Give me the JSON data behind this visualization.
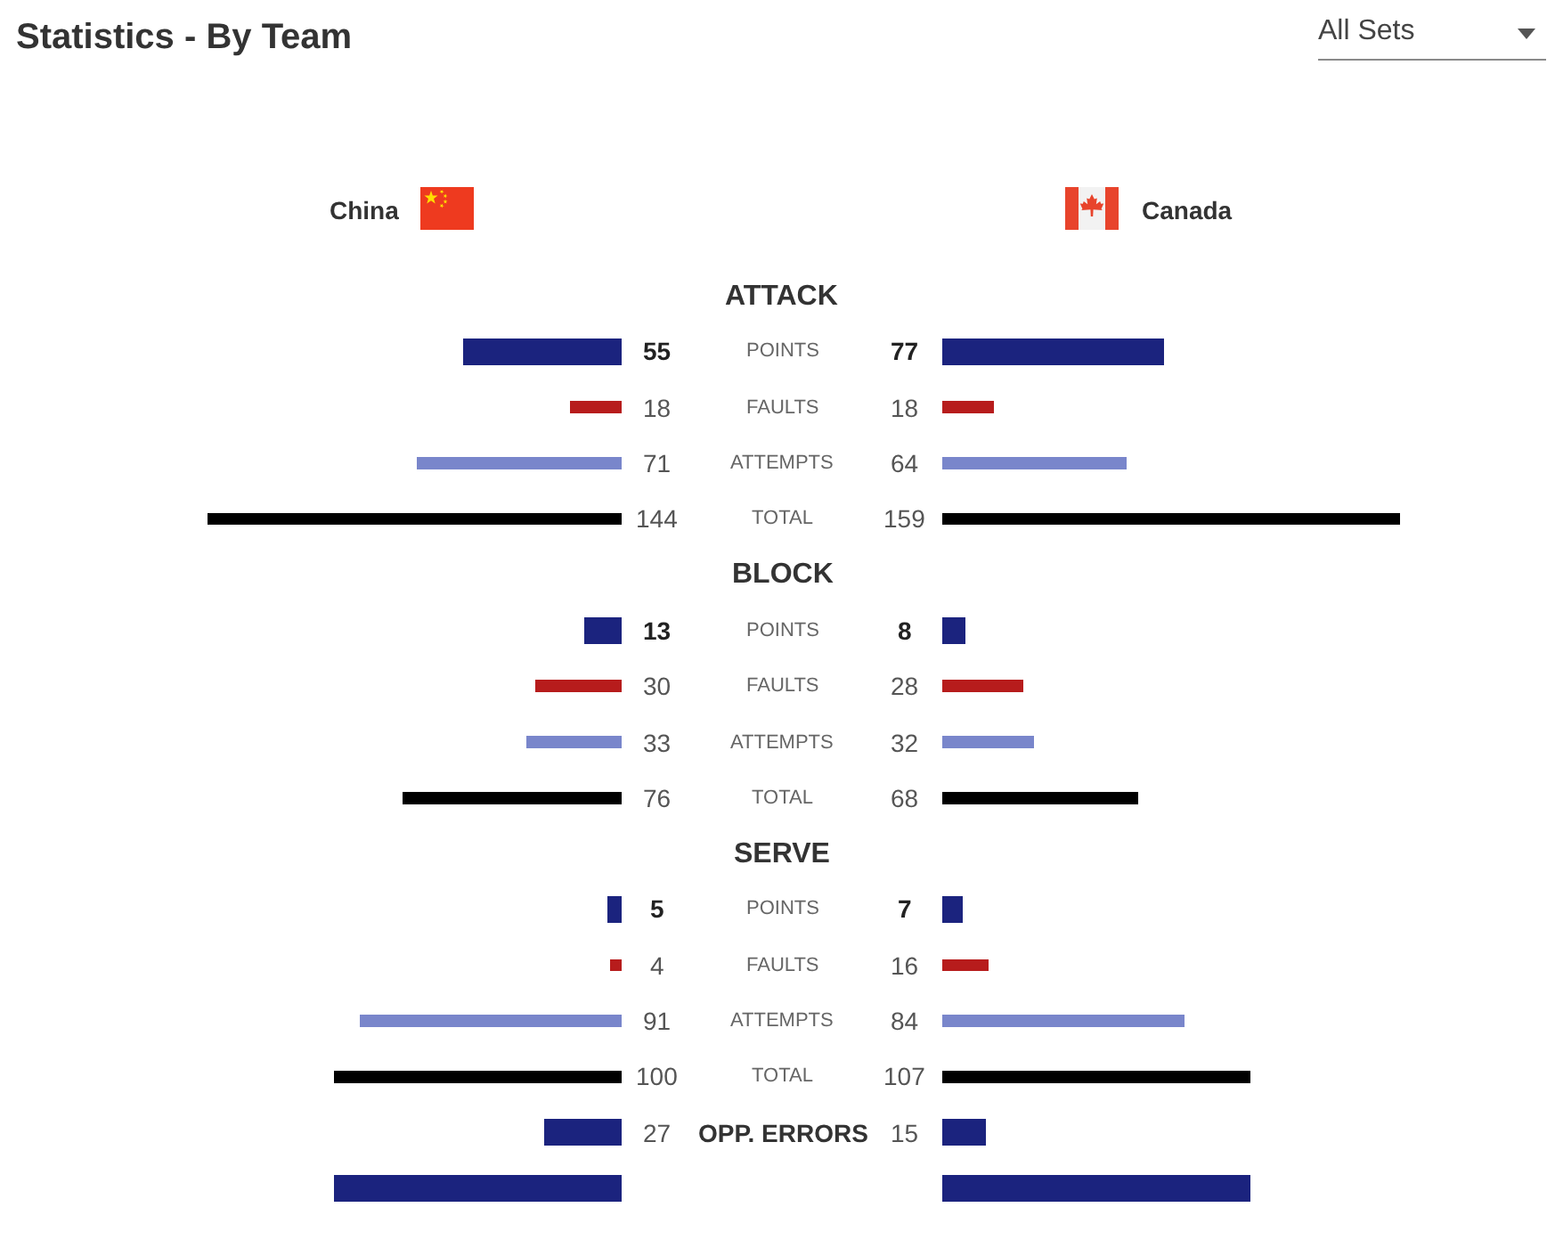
{
  "chart_data": [
    {
      "type": "bar",
      "orientation": "horizontal",
      "title": "Statistics - By Team",
      "categories": [
        "ATTACK",
        "POINTS",
        "FAULTS",
        "ATTEMPTS",
        "TOTAL",
        "BLOCK",
        "POINTS",
        "FAULTS",
        "ATTEMPTS",
        "TOTAL",
        "SERVE",
        "POINTS",
        "FAULTS",
        "ATTEMPTS",
        "TOTAL",
        "OPP. ERRORS",
        null
      ],
      "series": [
        {
          "name": "China",
          "values": [
            null,
            55,
            18,
            71,
            144,
            null,
            13,
            30,
            33,
            76,
            null,
            5,
            4,
            91,
            100,
            27,
            100
          ],
          "colors": [
            null,
            "#1b237e",
            "#b71c1c",
            "#7986cb",
            "#000000",
            null,
            "#1b237e",
            "#b71c1c",
            "#7986cb",
            "#000000",
            null,
            "#1b237e",
            "#b71c1c",
            "#7986cb",
            "#000000",
            "#1b237e",
            "#1b237e"
          ],
          "value_labels": [
            null,
            "55",
            "18",
            "71",
            "144",
            null,
            "13",
            "30",
            "33",
            "76",
            null,
            "5",
            "4",
            "91",
            "100",
            "27",
            null
          ]
        }
      ],
      "tick_labels": "y"
    },
    {
      "type": "bar",
      "orientation": "horizontal",
      "annotations": [
        "All Sets"
      ],
      "categories": [
        null,
        null,
        null,
        null,
        null,
        null,
        null,
        null,
        null,
        null,
        null,
        null,
        null,
        null,
        null,
        null,
        null
      ],
      "series": [
        {
          "name": "Canada",
          "values": [
            null,
            77,
            18,
            64,
            159,
            null,
            8,
            28,
            32,
            68,
            null,
            7,
            16,
            84,
            107,
            15,
            107
          ],
          "colors": [
            null,
            "#1b237e",
            "#b71c1c",
            "#7986cb",
            "#000000",
            null,
            "#1b237e",
            "#b71c1c",
            "#7986cb",
            "#000000",
            null,
            "#1b237e",
            "#b71c1c",
            "#7986cb",
            "#000000",
            "#1b237e",
            "#1b237e"
          ],
          "value_labels": [
            null,
            "77",
            "18",
            "64",
            "159",
            null,
            "8",
            "28",
            "32",
            "68",
            null,
            "7",
            "16",
            "84",
            "107",
            "15",
            null
          ]
        }
      ],
      "tick_labels": false
    }
  ]
}
